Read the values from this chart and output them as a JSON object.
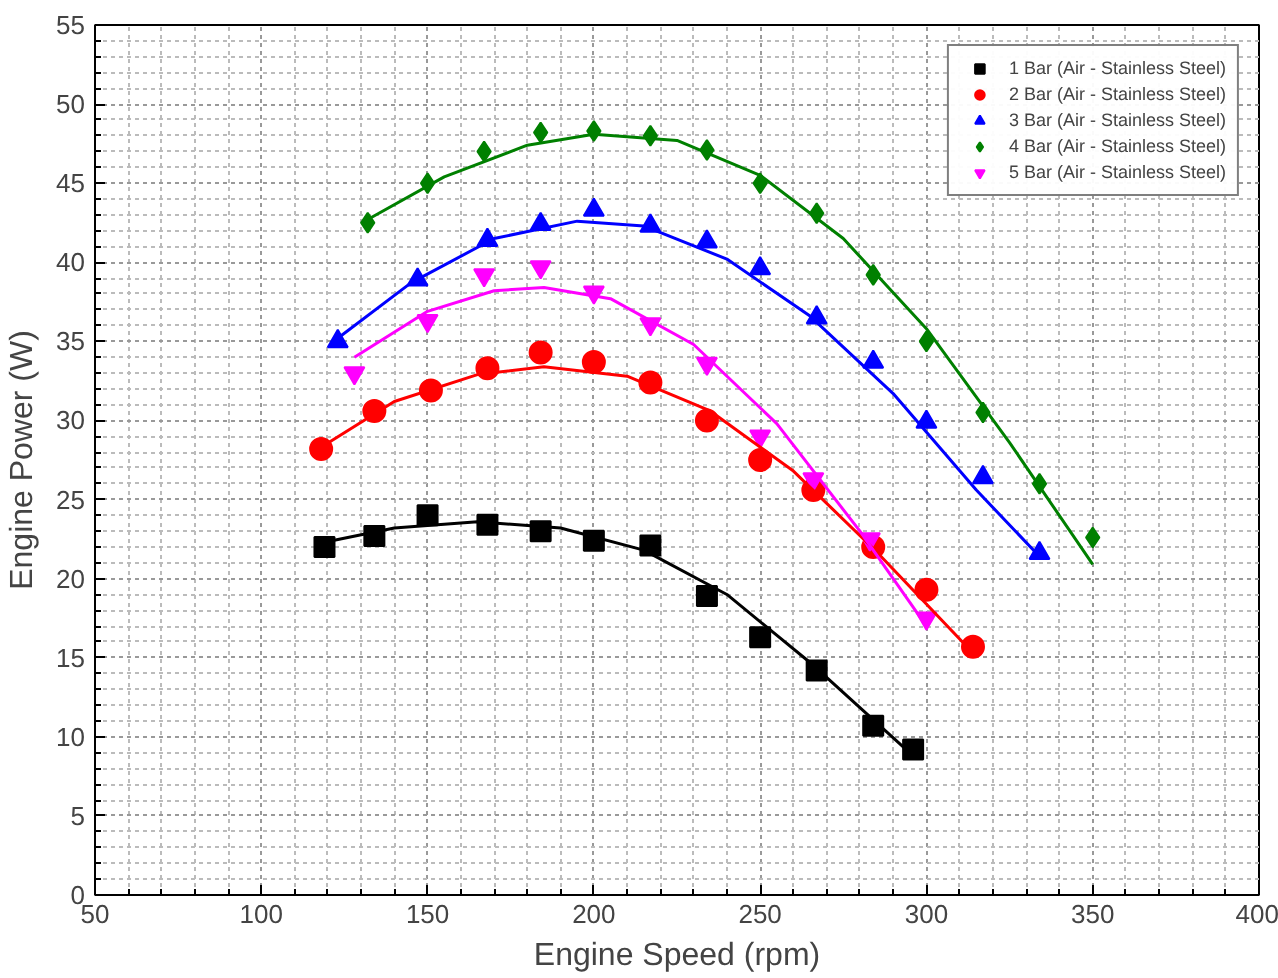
{
  "chart_data": {
    "type": "scatter",
    "xlabel": "Engine Speed (rpm)",
    "ylabel": "Engine Power (W)",
    "xlim": [
      50,
      400
    ],
    "ylim": [
      0,
      55
    ],
    "xticks": [
      50,
      100,
      150,
      200,
      250,
      300,
      350,
      400
    ],
    "yticks": [
      0,
      5,
      10,
      15,
      20,
      25,
      30,
      35,
      40,
      45,
      50,
      55
    ],
    "grid": true,
    "legend": "top right",
    "series": [
      {
        "name": "1 Bar (Air - Stainless Steel)",
        "marker": "square",
        "color": "#000000",
        "x": [
          119,
          134,
          150,
          168,
          184,
          200,
          217,
          234,
          250,
          267,
          284,
          296
        ],
        "values": [
          22.0,
          22.7,
          24.0,
          23.4,
          23.0,
          22.4,
          22.1,
          18.9,
          16.3,
          14.2,
          10.7,
          9.2
        ]
      },
      {
        "name": "2 Bar (Air - Stainless Steel)",
        "marker": "circle",
        "color": "#ff0000",
        "x": [
          118,
          134,
          151,
          168,
          184,
          200,
          217,
          234,
          250,
          266,
          284,
          300,
          314
        ],
        "values": [
          28.2,
          30.6,
          31.9,
          33.3,
          34.3,
          33.7,
          32.4,
          30.0,
          27.5,
          25.6,
          22.0,
          19.3,
          15.7
        ]
      },
      {
        "name": "3 Bar (Air - Stainless Steel)",
        "marker": "triangle",
        "color": "#0000ff",
        "x": [
          123,
          147,
          168,
          184,
          200,
          217,
          234,
          250,
          267,
          284,
          300,
          317,
          334
        ],
        "values": [
          35.0,
          38.9,
          41.4,
          42.4,
          43.3,
          42.3,
          41.3,
          39.6,
          36.5,
          33.7,
          29.9,
          26.4,
          21.6
        ]
      },
      {
        "name": "4 Bar (Air - Stainless Steel)",
        "marker": "diamond",
        "color": "#008000",
        "x": [
          132,
          150,
          167,
          184,
          200,
          217,
          234,
          250,
          267,
          284,
          300,
          317,
          334,
          350
        ],
        "values": [
          42.5,
          45.0,
          47.0,
          48.2,
          48.3,
          48.0,
          47.1,
          45.0,
          43.1,
          39.2,
          35.0,
          30.5,
          26.0,
          22.6
        ]
      },
      {
        "name": "5 Bar (Air - Stainless Steel)",
        "color": "#ff00ff",
        "x": [
          128,
          150,
          167,
          184,
          200,
          217,
          234,
          250,
          266,
          283,
          300
        ],
        "values": [
          33.0,
          36.3,
          39.2,
          39.7,
          38.1,
          36.1,
          33.6,
          29.0,
          26.3,
          22.5,
          17.5
        ]
      },
      {
        "type": "line",
        "color": "#000000",
        "x": [
          119,
          140,
          165,
          190,
          215,
          240,
          265,
          296
        ],
        "values": [
          22.3,
          23.2,
          23.6,
          23.2,
          21.8,
          19.0,
          14.7,
          8.8
        ]
      },
      {
        "type": "line",
        "color": "#ff0000",
        "x": [
          118,
          140,
          165,
          185,
          210,
          235,
          260,
          285,
          314
        ],
        "values": [
          28.3,
          31.2,
          32.9,
          33.4,
          32.8,
          30.6,
          26.8,
          21.7,
          15.3
        ]
      },
      {
        "type": "line",
        "color": "#0000ff",
        "x": [
          123,
          145,
          170,
          195,
          215,
          240,
          265,
          290,
          315,
          334
        ],
        "values": [
          35.2,
          38.7,
          41.5,
          42.6,
          42.3,
          40.2,
          36.6,
          31.7,
          25.6,
          21.4
        ]
      },
      {
        "type": "line",
        "color": "#008000",
        "x": [
          132,
          155,
          180,
          200,
          225,
          250,
          275,
          300,
          325,
          350
        ],
        "values": [
          42.7,
          45.4,
          47.4,
          48.1,
          47.7,
          45.5,
          41.5,
          35.8,
          28.6,
          20.9
        ]
      },
      {
        "type": "line",
        "color": "#ff00ff",
        "x": [
          128,
          150,
          170,
          185,
          205,
          230,
          255,
          280,
          300
        ],
        "values": [
          34.0,
          36.9,
          38.2,
          38.4,
          37.7,
          34.8,
          29.8,
          23.0,
          17.0
        ]
      }
    ]
  }
}
